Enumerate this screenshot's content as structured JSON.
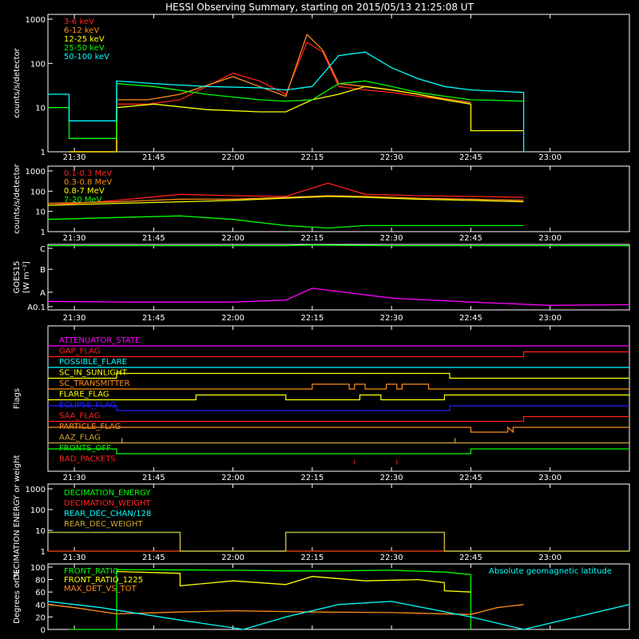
{
  "title": "HESSI Observing Summary, starting on 2015/05/13 21:25:08 UT",
  "time_ticks": [
    "21:30",
    "21:45",
    "22:00",
    "22:15",
    "22:30",
    "22:45",
    "23:00"
  ],
  "chart_data": [
    {
      "type": "line",
      "name": "count-rates-low",
      "ylabel": "counts/s/detector",
      "yscale": "log",
      "ylim": [
        1,
        1000
      ],
      "yticks": [
        "1",
        "10",
        "100",
        "1000"
      ],
      "xlim": [
        "21:25",
        "23:15"
      ],
      "legend_placement": "top-left",
      "series": [
        {
          "name": "3-6 keV",
          "color": "#ff2020",
          "x": [
            "21:29",
            "21:38",
            "21:38",
            "21:44",
            "21:50",
            "22:00",
            "22:05",
            "22:10",
            "22:14",
            "22:17",
            "22:20",
            "22:25",
            "22:30",
            "22:35",
            "22:40",
            "22:45"
          ],
          "values": [
            1,
            1,
            12,
            12,
            15,
            60,
            40,
            20,
            300,
            180,
            30,
            25,
            22,
            18,
            15,
            12
          ]
        },
        {
          "name": "6-12 keV",
          "color": "#ff8c1a",
          "x": [
            "21:29",
            "21:38",
            "21:38",
            "21:44",
            "21:50",
            "22:00",
            "22:05",
            "22:10",
            "22:14",
            "22:17",
            "22:20",
            "22:25",
            "22:30",
            "22:35",
            "22:40",
            "22:45"
          ],
          "values": [
            1,
            1,
            15,
            15,
            20,
            50,
            30,
            18,
            450,
            200,
            35,
            30,
            25,
            20,
            16,
            13
          ]
        },
        {
          "name": "12-25 keV",
          "color": "#ffff00",
          "x": [
            "21:29",
            "21:38",
            "21:38",
            "21:45",
            "21:55",
            "22:05",
            "22:10",
            "22:15",
            "22:20",
            "22:25",
            "22:30",
            "22:35",
            "22:40",
            "22:45",
            "22:45",
            "22:55"
          ],
          "values": [
            1,
            1,
            10,
            12,
            9,
            8,
            8,
            15,
            20,
            30,
            25,
            20,
            15,
            12,
            3,
            3
          ]
        },
        {
          "name": "25-50 keV",
          "color": "#00ff00",
          "x": [
            "21:25",
            "21:29",
            "21:29",
            "21:38",
            "21:38",
            "21:45",
            "21:55",
            "22:05",
            "22:10",
            "22:15",
            "22:20",
            "22:25",
            "22:30",
            "22:35",
            "22:40",
            "22:45",
            "22:55"
          ],
          "values": [
            10,
            10,
            2,
            2,
            35,
            30,
            20,
            15,
            14,
            15,
            35,
            40,
            30,
            22,
            18,
            15,
            14
          ]
        },
        {
          "name": "50-100 keV",
          "color": "#00ffff",
          "x": [
            "21:25",
            "21:29",
            "21:29",
            "21:38",
            "21:38",
            "21:45",
            "21:55",
            "22:05",
            "22:10",
            "22:15",
            "22:20",
            "22:25",
            "22:30",
            "22:35",
            "22:40",
            "22:45",
            "22:55",
            "22:55"
          ],
          "values": [
            20,
            20,
            5,
            5,
            40,
            35,
            30,
            28,
            25,
            30,
            150,
            180,
            80,
            45,
            30,
            25,
            22,
            1
          ]
        }
      ]
    },
    {
      "type": "line",
      "name": "count-rates-high",
      "ylabel": "counts/s/detector",
      "yscale": "log",
      "ylim": [
        1,
        1000
      ],
      "yticks": [
        "1",
        "10",
        "100",
        "1000"
      ],
      "legend_placement": "top-left",
      "series": [
        {
          "name": "0.1-0.3 MeV",
          "color": "#ff2020",
          "x": [
            "21:25",
            "21:38",
            "21:50",
            "22:00",
            "22:10",
            "22:18",
            "22:25",
            "22:35",
            "22:45",
            "22:55"
          ],
          "values": [
            20,
            35,
            70,
            60,
            55,
            250,
            70,
            60,
            55,
            50
          ]
        },
        {
          "name": "0.3-0.8 MeV",
          "color": "#ff8c1a",
          "x": [
            "21:25",
            "21:38",
            "21:50",
            "22:00",
            "22:10",
            "22:18",
            "22:25",
            "22:35",
            "22:45",
            "22:55"
          ],
          "values": [
            25,
            30,
            40,
            40,
            50,
            60,
            55,
            45,
            40,
            35
          ]
        },
        {
          "name": "0.8-7 MeV",
          "color": "#ffff00",
          "x": [
            "21:25",
            "21:38",
            "21:50",
            "22:00",
            "22:10",
            "22:18",
            "22:25",
            "22:35",
            "22:45",
            "22:55"
          ],
          "values": [
            20,
            25,
            30,
            35,
            45,
            55,
            50,
            40,
            35,
            30
          ]
        },
        {
          "name": "7-20 MeV",
          "color": "#00ff00",
          "x": [
            "21:25",
            "21:38",
            "21:50",
            "22:00",
            "22:10",
            "22:18",
            "22:25",
            "22:35",
            "22:45",
            "22:55"
          ],
          "values": [
            4,
            5,
            6,
            4,
            2,
            1.5,
            2,
            2,
            2,
            2
          ]
        }
      ]
    },
    {
      "type": "line",
      "name": "goes",
      "ylabel": "GOES15",
      "yunit": "[W m⁻²]",
      "yticks": [
        "A0.1",
        "A",
        "B",
        "C"
      ],
      "series": [
        {
          "name": "GOES long",
          "color": "#00ff00",
          "x": [
            "21:25",
            "22:10",
            "22:15",
            "22:30",
            "23:15"
          ],
          "values": [
            0.98,
            0.98,
            0.99,
            0.98,
            0.98
          ]
        },
        {
          "name": "GOES short",
          "color": "#ff00ff",
          "x": [
            "21:25",
            "21:40",
            "22:00",
            "22:10",
            "22:15",
            "22:20",
            "22:30",
            "22:45",
            "23:00",
            "23:15"
          ],
          "values": [
            0.13,
            0.12,
            0.12,
            0.15,
            0.33,
            0.28,
            0.18,
            0.12,
            0.07,
            0.08
          ]
        }
      ]
    },
    {
      "type": "line",
      "name": "flags",
      "ylabel": "Flags",
      "series": [
        {
          "name": "ATTENUATOR_STATE",
          "color": "#ff00ff",
          "x": [
            "21:25",
            "23:15"
          ],
          "values": [
            0,
            0
          ]
        },
        {
          "name": "GAP_FLAG",
          "color": "#ff2020",
          "x": [
            "21:25",
            "22:55",
            "22:55",
            "23:15"
          ],
          "values": [
            0,
            0,
            1,
            1
          ]
        },
        {
          "name": "POSSIBLE_FLARE",
          "color": "#00ffff",
          "x": [
            "21:25",
            "23:15"
          ],
          "values": [
            0,
            0
          ]
        },
        {
          "name": "SC_IN_SUNLIGHT",
          "color": "#ffff00",
          "x": [
            "21:25",
            "21:38",
            "21:38",
            "22:41",
            "22:41",
            "23:15"
          ],
          "values": [
            0,
            0,
            1,
            1,
            0,
            0
          ]
        },
        {
          "name": "SC_TRANSMITTER",
          "color": "#ff8c1a",
          "x": [
            "21:25",
            "22:15",
            "22:15",
            "22:22",
            "22:22",
            "22:23",
            "22:23",
            "22:25",
            "22:25",
            "22:29",
            "22:29",
            "22:31",
            "22:31",
            "22:32",
            "22:32",
            "22:37",
            "22:37",
            "23:15"
          ],
          "values": [
            0,
            0,
            1,
            1,
            0,
            0,
            1,
            1,
            0,
            0,
            1,
            1,
            0,
            0,
            1,
            1,
            0,
            0
          ]
        },
        {
          "name": "FLARE_FLAG",
          "color": "#ffff00",
          "x": [
            "21:25",
            "21:53",
            "21:53",
            "22:10",
            "22:10",
            "22:24",
            "22:24",
            "22:28",
            "22:28",
            "22:40",
            "22:40",
            "23:15"
          ],
          "values": [
            0,
            0,
            1,
            1,
            0,
            0,
            1,
            1,
            0,
            0,
            1,
            1
          ]
        },
        {
          "name": "ECLIPSE_FLAG",
          "color": "#2020ff",
          "x": [
            "21:25",
            "21:38",
            "21:38",
            "22:41",
            "22:41",
            "23:15"
          ],
          "values": [
            1,
            1,
            0,
            0,
            1,
            1
          ]
        },
        {
          "name": "SAA_FLAG",
          "color": "#ff2020",
          "x": [
            "21:25",
            "22:55",
            "22:55",
            "23:15"
          ],
          "values": [
            0,
            0,
            1,
            1
          ]
        },
        {
          "name": "PARTICLE_FLAG",
          "color": "#ff8c1a",
          "x": [
            "21:25",
            "22:45",
            "22:45",
            "22:52",
            "22:52",
            "22:53",
            "22:53",
            "23:15"
          ],
          "values": [
            1,
            1,
            0,
            0,
            1,
            0,
            1,
            1
          ]
        },
        {
          "name": "AAZ_FLAG",
          "color": "#ccaa33",
          "x": [
            "21:25",
            "21:39",
            "21:39",
            "21:39",
            "22:42",
            "22:42",
            "22:42",
            "23:15"
          ],
          "values": [
            0,
            0,
            1,
            0,
            0,
            1,
            0,
            0
          ]
        },
        {
          "name": "FRONTS_OFF",
          "color": "#00ff00",
          "x": [
            "21:25",
            "21:38",
            "21:38",
            "22:45",
            "22:45",
            "23:15"
          ],
          "values": [
            1,
            1,
            0,
            0,
            1,
            1
          ]
        },
        {
          "name": "BAD_PACKETS",
          "color": "#ff2020",
          "x": [
            "22:23",
            "22:31"
          ],
          "values": [
            1,
            1
          ]
        }
      ]
    },
    {
      "type": "line",
      "name": "decimation",
      "ylabel": "DECIMATION ENERGY or weight",
      "yscale": "log",
      "ylim": [
        1,
        1000
      ],
      "yticks": [
        "1",
        "10",
        "100",
        "1000"
      ],
      "legend_placement": "top-left",
      "series": [
        {
          "name": "DECIMATION_ENERGY",
          "color": "#00ff00",
          "x": [
            "21:25",
            "23:15"
          ],
          "values": [
            1,
            1
          ]
        },
        {
          "name": "DECIMATION_WEIGHT",
          "color": "#ff2020",
          "x": [
            "21:25",
            "23:15"
          ],
          "values": [
            1,
            1
          ]
        },
        {
          "name": "REAR_DEC_CHAN/128",
          "color": "#00ffff",
          "x": [
            "21:25",
            "21:50",
            "21:50",
            "22:10",
            "22:10",
            "22:40",
            "22:40",
            "23:15"
          ],
          "values": [
            8,
            8,
            1,
            1,
            8,
            8,
            1,
            1
          ]
        },
        {
          "name": "REAR_DEC_WEIGHT",
          "color": "#ccaa33",
          "x": [
            "21:25",
            "21:50",
            "21:50",
            "22:10",
            "22:10",
            "22:40",
            "22:40",
            "23:15"
          ],
          "values": [
            8,
            8,
            1,
            1,
            8,
            8,
            1,
            1
          ]
        }
      ]
    },
    {
      "type": "line",
      "name": "ratios",
      "ylabel": "Degrees or %",
      "ylim": [
        0,
        100
      ],
      "yticks": [
        "0",
        "20",
        "40",
        "60",
        "80",
        "100"
      ],
      "series": [
        {
          "name": "FRONT_RATIO",
          "color": "#00ff00",
          "x": [
            "21:29",
            "21:38",
            "21:38",
            "22:00",
            "22:10",
            "22:20",
            "22:30",
            "22:40",
            "22:45",
            "22:45"
          ],
          "values": [
            0,
            0,
            96,
            95,
            94,
            94,
            95,
            92,
            88,
            0
          ]
        },
        {
          "name": "FRONT_RATIO_1225",
          "color": "#ffff00",
          "x": [
            "21:38",
            "21:50",
            "21:50",
            "22:00",
            "22:10",
            "22:15",
            "22:25",
            "22:35",
            "22:40",
            "22:40",
            "22:45"
          ],
          "values": [
            93,
            90,
            70,
            78,
            72,
            85,
            78,
            80,
            75,
            62,
            60
          ]
        },
        {
          "name": "MAX_DET_VS_TOT",
          "color": "#ff8c1a",
          "x": [
            "21:25",
            "21:30",
            "21:38",
            "21:50",
            "22:00",
            "22:15",
            "22:30",
            "22:45",
            "22:50",
            "22:55"
          ],
          "values": [
            40,
            35,
            25,
            28,
            30,
            28,
            27,
            24,
            35,
            40
          ]
        },
        {
          "name": "Absolute geomagnetic latitude",
          "color": "#00ffff",
          "x": [
            "21:25",
            "21:35",
            "21:50",
            "22:02",
            "22:10",
            "22:20",
            "22:30",
            "22:45",
            "22:55",
            "23:15"
          ],
          "values": [
            45,
            35,
            15,
            0,
            20,
            40,
            45,
            20,
            0,
            40
          ]
        }
      ]
    }
  ]
}
